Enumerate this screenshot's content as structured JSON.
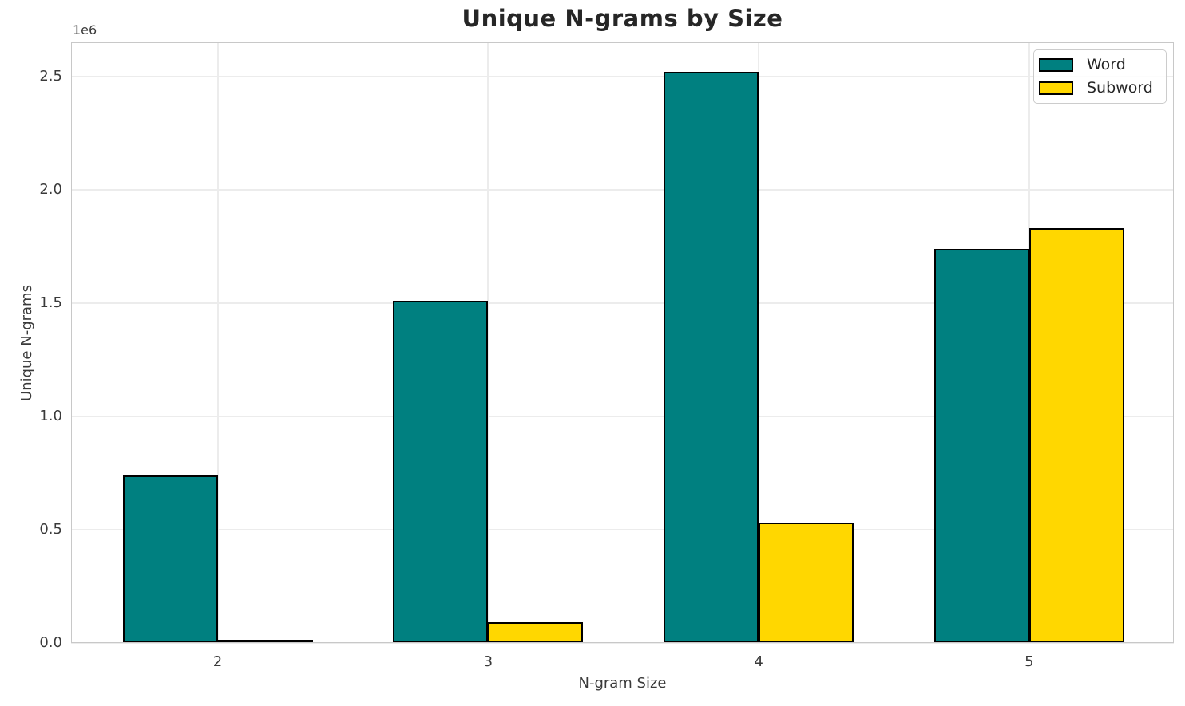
{
  "chart_data": {
    "type": "bar",
    "title": "Unique N-grams by Size",
    "xlabel": "N-gram Size",
    "ylabel": "Unique N-grams",
    "y_offset_label": "1e6",
    "categories": [
      "2",
      "3",
      "4",
      "5"
    ],
    "series": [
      {
        "name": "Word",
        "color": "#008080",
        "values": [
          740000,
          1510000,
          2520000,
          1740000
        ]
      },
      {
        "name": "Subword",
        "color": "#FFD700",
        "values": [
          15000,
          90000,
          530000,
          1830000
        ]
      }
    ],
    "bar_edge_color": "#000000",
    "ylim": [
      0,
      2650000
    ],
    "yticks": {
      "values": [
        0,
        500000,
        1000000,
        1500000,
        2000000,
        2500000
      ],
      "labels": [
        "0.0",
        "0.5",
        "1.0",
        "1.5",
        "2.0",
        "2.5"
      ]
    },
    "grid": true,
    "legend": {
      "position": "upper right"
    }
  }
}
